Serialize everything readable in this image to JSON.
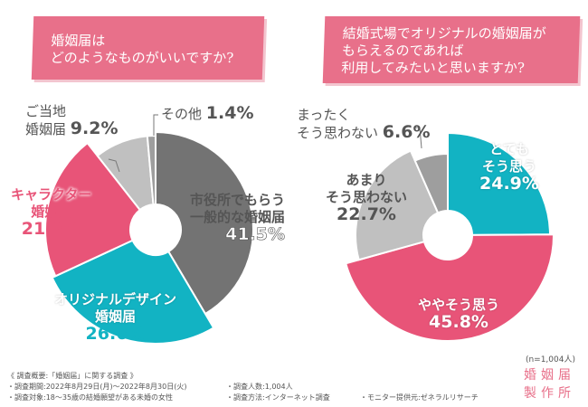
{
  "colors": {
    "pink": "#e85478",
    "teal": "#12b3c3",
    "dark_grey": "#737373",
    "light_grey": "#c0c0c0",
    "mid_grey": "#9e9e9e",
    "banner": "#e8708a"
  },
  "chart_data": [
    {
      "type": "pie",
      "title": "婚姻届は\nどのようなものがいいですか?",
      "slices": [
        {
          "label": "市役所でもらう一般的な婚姻届",
          "value": 41.5,
          "color": "#737373"
        },
        {
          "label": "オリジナルデザイン婚姻届",
          "value": 26.6,
          "color": "#12b3c3"
        },
        {
          "label": "キャラクター婚姻届",
          "value": 21.3,
          "color": "#e85478"
        },
        {
          "label": "ご当地婚姻届",
          "value": 9.2,
          "color": "#c0c0c0"
        },
        {
          "label": "その他",
          "value": 1.4,
          "color": "#9e9e9e"
        }
      ]
    },
    {
      "type": "pie",
      "title": "結婚式場でオリジナルの婚姻届が\nもらえるのであれば\n利用してみたいと思いますか?",
      "slices": [
        {
          "label": "とてもそう思う",
          "value": 24.9,
          "color": "#12b3c3"
        },
        {
          "label": "ややそう思う",
          "value": 45.8,
          "color": "#e85478"
        },
        {
          "label": "あまりそう思わない",
          "value": 22.7,
          "color": "#c0c0c0"
        },
        {
          "label": "まったくそう思わない",
          "value": 6.6,
          "color": "#9e9e9e"
        }
      ]
    }
  ],
  "q1": {
    "title1": "婚姻届は",
    "title2": "どのようなものがいいですか?",
    "l0a": "市役所でもらう",
    "l0b": "一般的な婚姻届",
    "p0": "41.5%",
    "l1a": "オリジナルデザイン",
    "l1b": "婚姻届",
    "p1": "26.6%",
    "l2a": "キャラクター",
    "l2b": "婚姻届",
    "p2": "21.3%",
    "l3a": "ご当地",
    "l3b": "婚姻届",
    "p3": "9.2%",
    "l4": "その他",
    "p4": "1.4%"
  },
  "q2": {
    "title1": "結婚式場でオリジナルの婚姻届が",
    "title2": "もらえるのであれば",
    "title3": "利用してみたいと思いますか?",
    "l0a": "とても",
    "l0b": "そう思う",
    "p0": "24.9%",
    "l1": "ややそう思う",
    "p1": "45.8%",
    "l2a": "あまり",
    "l2b": "そう思わない",
    "p2": "22.7%",
    "l3a": "まったく",
    "l3b": "そう思わない",
    "p3": "6.6%"
  },
  "sample": "(n=1,004人)",
  "notes": {
    "overview": "《 調査概要:「婚姻届」に関する調査 》",
    "period": "・調査期間:2022年8月29日(月)〜2022年8月30日(火)",
    "target": "・調査対象:18〜35歳の結婚願望がある未婚の女性",
    "count": "・調査人数:1,004人",
    "method": "・調査方法:インターネット調査",
    "provider": "・モニター提供元:ゼネラルリサーチ"
  },
  "logo": {
    "line1": "婚姻届",
    "line2": "製作所"
  }
}
